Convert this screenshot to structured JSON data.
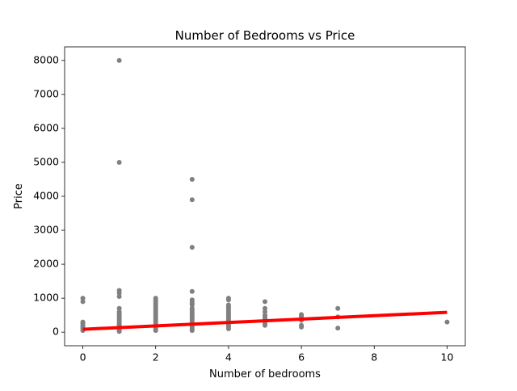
{
  "chart_data": {
    "type": "scatter",
    "title": "Number of Bedrooms  vs Price",
    "xlabel": "Number of bedrooms",
    "ylabel": "Price",
    "xlim": [
      -0.5,
      10.5
    ],
    "ylim": [
      -400,
      8400
    ],
    "xticks": [
      0,
      2,
      4,
      6,
      8,
      10
    ],
    "yticks": [
      0,
      1000,
      2000,
      3000,
      4000,
      5000,
      6000,
      7000,
      8000
    ],
    "series": [
      {
        "type": "scatter",
        "color": "#808080",
        "x": [
          0,
          0,
          0,
          0,
          0,
          0,
          0,
          0,
          1,
          1,
          1,
          1,
          1,
          1,
          1,
          1,
          1,
          1,
          1,
          1,
          1,
          1,
          1,
          1,
          1,
          1,
          1,
          1,
          2,
          2,
          2,
          2,
          2,
          2,
          2,
          2,
          2,
          2,
          2,
          2,
          2,
          2,
          2,
          2,
          2,
          2,
          2,
          2,
          3,
          3,
          3,
          3,
          3,
          3,
          3,
          3,
          3,
          3,
          3,
          3,
          3,
          3,
          3,
          3,
          3,
          3,
          3,
          3,
          3,
          3,
          4,
          4,
          4,
          4,
          4,
          4,
          4,
          4,
          4,
          4,
          4,
          4,
          4,
          4,
          4,
          4,
          4,
          5,
          5,
          5,
          5,
          5,
          5,
          5,
          5,
          5,
          5,
          6,
          6,
          6,
          6,
          6,
          6,
          6,
          7,
          7,
          7,
          10
        ],
        "values": [
          1000,
          900,
          300,
          250,
          200,
          150,
          100,
          50,
          8000,
          5000,
          1230,
          1150,
          1050,
          700,
          600,
          550,
          500,
          450,
          400,
          350,
          300,
          250,
          200,
          150,
          100,
          80,
          50,
          20,
          1000,
          950,
          900,
          850,
          800,
          750,
          700,
          650,
          600,
          550,
          500,
          450,
          400,
          350,
          300,
          250,
          200,
          150,
          100,
          50,
          4500,
          3900,
          2500,
          1200,
          950,
          900,
          850,
          800,
          700,
          650,
          600,
          550,
          500,
          450,
          400,
          350,
          300,
          250,
          200,
          150,
          100,
          50,
          1000,
          950,
          800,
          750,
          700,
          650,
          600,
          550,
          500,
          450,
          400,
          350,
          300,
          250,
          200,
          150,
          100,
          900,
          700,
          600,
          500,
          450,
          400,
          350,
          300,
          250,
          200,
          520,
          480,
          450,
          400,
          350,
          200,
          150,
          700,
          450,
          120,
          300
        ]
      },
      {
        "type": "line",
        "color": "#ff0000",
        "x": [
          0,
          10
        ],
        "values": [
          85,
          585
        ]
      }
    ]
  }
}
